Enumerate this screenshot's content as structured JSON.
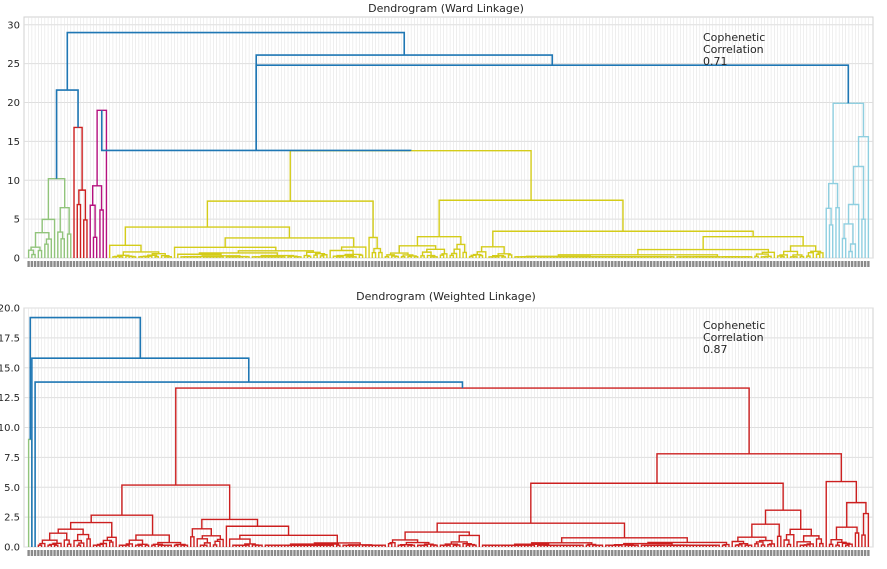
{
  "chart_data": [
    {
      "type": "dendrogram",
      "title": "Dendrogram (Ward Linkage)",
      "ylim": [
        0,
        31
      ],
      "yticks": [
        0,
        5,
        10,
        15,
        20,
        25,
        30
      ],
      "ytick_labels": [
        "0",
        "5",
        "10",
        "15",
        "20",
        "25",
        "30"
      ],
      "annotation": [
        "Cophenetic",
        "Correlation",
        "0.71"
      ],
      "grid": true,
      "n_leaves": 260,
      "clusters": [
        {
          "color": "#91c47b",
          "leaf_range": [
            0,
            14
          ],
          "height": 10.2
        },
        {
          "color": "#cc1f1f",
          "leaf_range": [
            14,
            19
          ],
          "height": 16.8
        },
        {
          "color": "#b5117e",
          "leaf_range": [
            19,
            25
          ],
          "height": 19.0
        },
        {
          "color": "#d4cc19",
          "leaf_range": [
            25,
            246
          ],
          "height": 13.8
        },
        {
          "color": "#8fcfe0",
          "leaf_range": [
            246,
            260
          ],
          "height": 19.9
        }
      ],
      "upper_links": [
        {
          "left": "c0",
          "right": "c1",
          "height": 21.6
        },
        {
          "left": "c2",
          "right": "c3",
          "height": 26.1
        },
        {
          "left": "upper0",
          "right": "c4",
          "height": 24.8
        },
        {
          "left": "c2",
          "right": "upper1",
          "height": 26.1
        },
        {
          "left": "upper0",
          "right": "upper3",
          "height": 29.0
        }
      ],
      "upper_color": "#1f77b4"
    },
    {
      "type": "dendrogram",
      "title": "Dendrogram (Weighted Linkage)",
      "ylim": [
        0,
        20
      ],
      "yticks": [
        0,
        2.5,
        5,
        7.5,
        10,
        12.5,
        15,
        17.5,
        20
      ],
      "ytick_labels": [
        "0.0",
        "2.5",
        "5.0",
        "7.5",
        "10.0",
        "12.5",
        "15.0",
        "17.5",
        "20.0"
      ],
      "annotation": [
        "Cophenetic",
        "Correlation",
        "0.87"
      ],
      "grid": true,
      "n_leaves": 260,
      "clusters": [
        {
          "color": "#91c47b",
          "leaf_range": [
            0,
            2
          ],
          "height": 9.0
        },
        {
          "color": "#cc1f1f",
          "leaf_range": [
            3,
            260
          ],
          "height": 13.3
        }
      ],
      "upper_links": [
        {
          "height": 13.8
        },
        {
          "height": 15.8
        },
        {
          "height": 19.2
        }
      ],
      "upper_color": "#1f77b4"
    }
  ]
}
